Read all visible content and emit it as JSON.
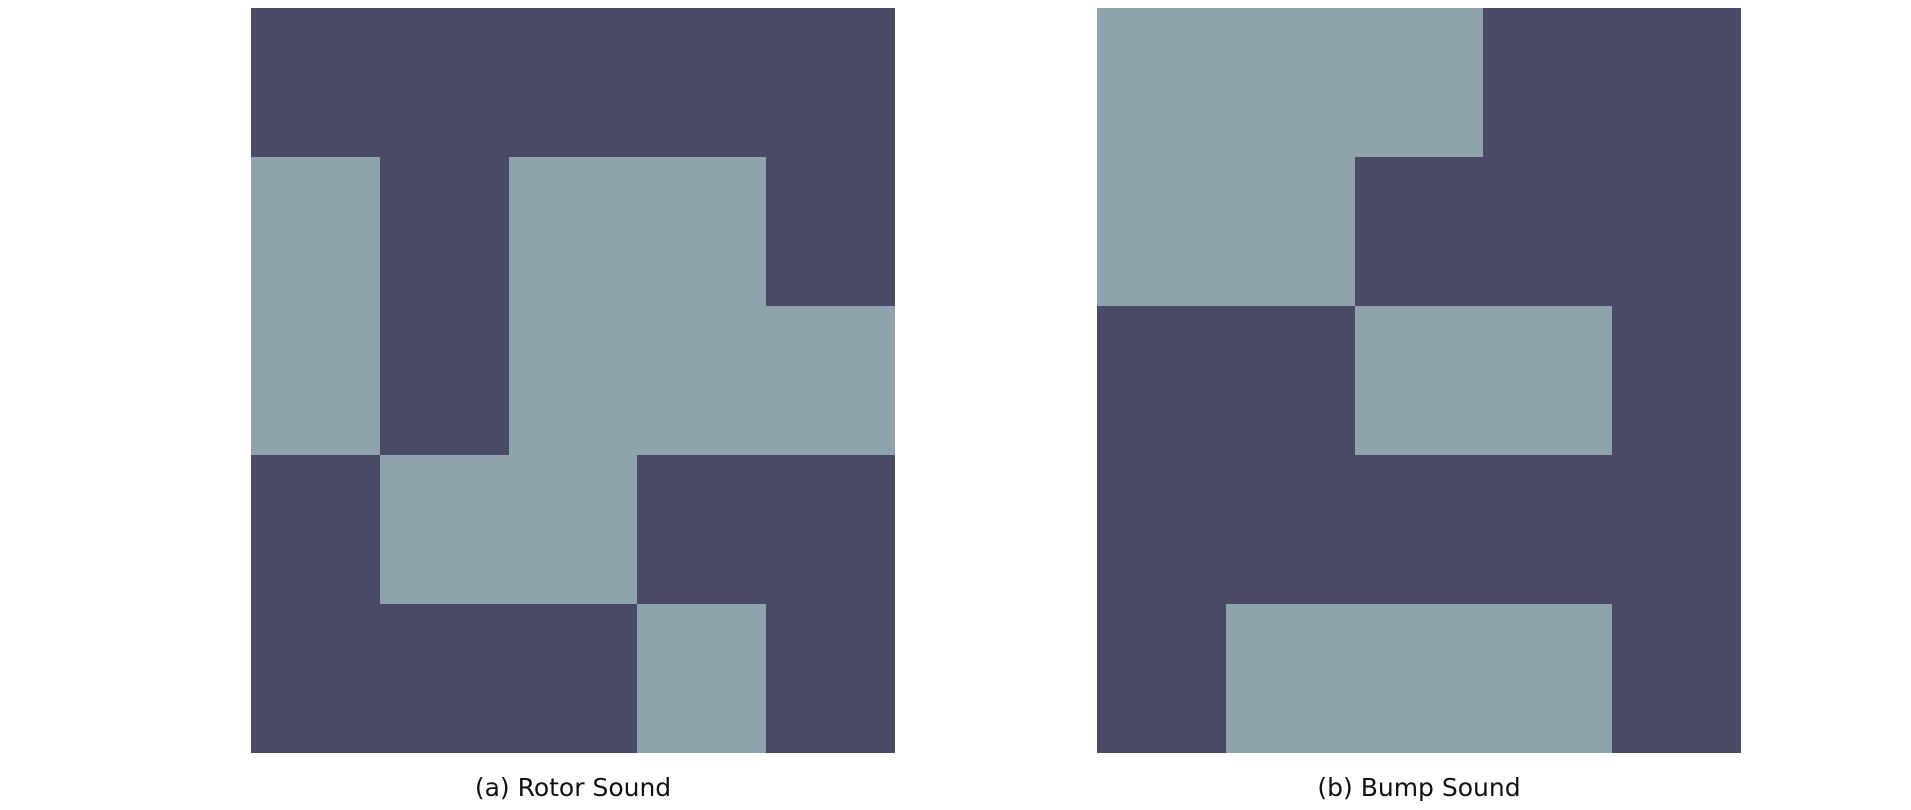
{
  "colors": {
    "dark": "#4a4966",
    "light": "#8ea3ab"
  },
  "panels": [
    {
      "caption": "(a) Rotor Sound",
      "grid": [
        [
          0,
          0,
          0,
          0,
          0
        ],
        [
          1,
          0,
          1,
          1,
          0
        ],
        [
          1,
          0,
          1,
          1,
          1
        ],
        [
          0,
          1,
          1,
          0,
          0
        ],
        [
          0,
          0,
          0,
          1,
          0
        ]
      ]
    },
    {
      "caption": "(b) Bump Sound",
      "grid": [
        [
          1,
          1,
          1,
          0,
          0
        ],
        [
          1,
          1,
          0,
          0,
          0
        ],
        [
          0,
          0,
          1,
          1,
          0
        ],
        [
          0,
          0,
          0,
          0,
          0
        ],
        [
          0,
          1,
          1,
          1,
          0
        ]
      ]
    }
  ]
}
